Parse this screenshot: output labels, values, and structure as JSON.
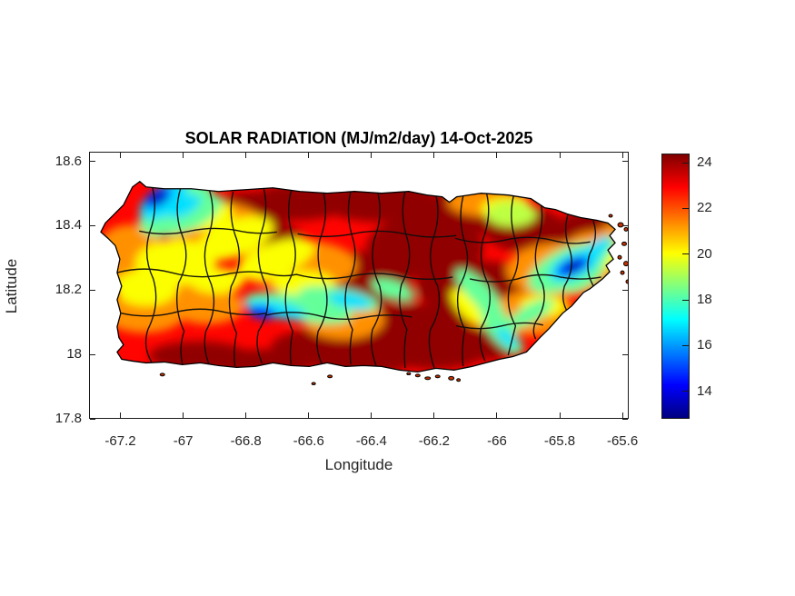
{
  "chart_data": {
    "type": "heatmap",
    "title": "SOLAR RADIATION (MJ/m2/day) 14-Oct-2025",
    "xlabel": "Longitude",
    "ylabel": "Latitude",
    "region": "Puerto Rico with municipal boundaries",
    "xlim": [
      -67.3,
      -65.58
    ],
    "ylim": [
      17.8,
      18.63
    ],
    "xticks": [
      -67.2,
      -67,
      -66.8,
      -66.6,
      -66.4,
      -66.2,
      -66,
      -65.8,
      -65.6
    ],
    "xtick_labels": [
      "-67.2",
      "-67",
      "-66.8",
      "-66.6",
      "-66.4",
      "-66.2",
      "-66",
      "-65.8",
      "-65.6"
    ],
    "yticks": [
      17.8,
      18,
      18.2,
      18.4,
      18.6
    ],
    "ytick_labels": [
      "17.8",
      "18",
      "18.2",
      "18.4",
      "18.6"
    ],
    "grid": false,
    "colormap": "jet",
    "clim": [
      12.8,
      24.4
    ],
    "colorbar_ticks": [
      14,
      16,
      18,
      20,
      22,
      24
    ],
    "colorbar_tick_labels": [
      "14",
      "16",
      "18",
      "20",
      "22",
      "24"
    ],
    "colorbar_position": "right",
    "base_value": 22.9,
    "features_format": [
      "lon",
      "lat",
      "value_MJ_m2_day",
      "rx_deg",
      "ry_deg",
      "rot_deg"
    ],
    "features": [
      [
        -66.779,
        18.447,
        24.2,
        0.13,
        0.062,
        0
      ],
      [
        -66.634,
        18.475,
        24.2,
        0.159,
        0.057,
        0
      ],
      [
        -66.373,
        18.475,
        24.2,
        0.188,
        0.062,
        0
      ],
      [
        -66.084,
        18.447,
        24.2,
        0.159,
        0.071,
        0
      ],
      [
        -65.91,
        18.39,
        24.2,
        0.13,
        0.071,
        0
      ],
      [
        -66.228,
        18.334,
        24.2,
        0.188,
        0.099,
        0
      ],
      [
        -66.431,
        18.235,
        24.2,
        0.159,
        0.085,
        0
      ],
      [
        -66.055,
        18.207,
        24.2,
        0.203,
        0.085,
        0
      ],
      [
        -66.286,
        18.08,
        24.2,
        0.203,
        0.079,
        0
      ],
      [
        -66.547,
        18.023,
        24.2,
        0.174,
        0.057,
        0
      ],
      [
        -66.952,
        17.995,
        24.2,
        0.159,
        0.045,
        0
      ],
      [
        -66.75,
        17.975,
        24.2,
        0.174,
        0.04,
        0
      ],
      [
        -66.431,
        17.975,
        24.2,
        0.159,
        0.04,
        0
      ],
      [
        -66.199,
        18.003,
        24.2,
        0.159,
        0.051,
        0
      ],
      [
        -66.055,
        18.032,
        24.2,
        0.145,
        0.051,
        0
      ],
      [
        -65.765,
        18.362,
        24.2,
        0.116,
        0.062,
        0
      ],
      [
        -65.684,
        18.41,
        24.2,
        0.101,
        0.051,
        0
      ],
      [
        -66.706,
        18.362,
        24.2,
        0.087,
        0.045,
        0
      ],
      [
        -66.895,
        18.39,
        21.3,
        0.159,
        0.085,
        0
      ],
      [
        -67.083,
        18.249,
        21.3,
        0.159,
        0.099,
        0
      ],
      [
        -67.17,
        18.334,
        21.3,
        0.101,
        0.071,
        0
      ],
      [
        -66.634,
        18.277,
        21.3,
        0.188,
        0.079,
        0
      ],
      [
        -66.489,
        18.108,
        21.3,
        0.13,
        0.062,
        0
      ],
      [
        -67.126,
        18.128,
        21.3,
        0.13,
        0.062,
        0
      ],
      [
        -66.924,
        18.15,
        21.3,
        0.116,
        0.057,
        0
      ],
      [
        -65.881,
        18.128,
        21.3,
        0.13,
        0.071,
        0
      ],
      [
        -65.678,
        18.305,
        21.3,
        0.116,
        0.079,
        0
      ],
      [
        -66.026,
        18.475,
        21.3,
        0.13,
        0.045,
        0
      ],
      [
        -65.794,
        18.263,
        21.3,
        0.174,
        0.085,
        0
      ],
      [
        -65.606,
        18.362,
        21.3,
        0.072,
        0.051,
        0
      ],
      [
        -66.958,
        18.438,
        20.0,
        0.116,
        0.051,
        0
      ],
      [
        -66.837,
        18.362,
        20.0,
        0.13,
        0.057,
        -20
      ],
      [
        -66.706,
        18.297,
        20.0,
        0.13,
        0.051,
        -20
      ],
      [
        -67.025,
        18.286,
        20.0,
        0.13,
        0.071,
        0
      ],
      [
        -67.12,
        18.207,
        20.0,
        0.101,
        0.057,
        0
      ],
      [
        -66.619,
        18.221,
        20.0,
        0.101,
        0.04,
        0
      ],
      [
        -66.541,
        18.156,
        20.0,
        0.101,
        0.04,
        0
      ],
      [
        -65.968,
        18.455,
        20.0,
        0.081,
        0.034,
        0
      ],
      [
        -66.084,
        18.144,
        20.0,
        0.081,
        0.034,
        45
      ],
      [
        -65.852,
        18.15,
        20.0,
        0.072,
        0.034,
        0
      ],
      [
        -66.895,
        18.229,
        20.0,
        0.087,
        0.04,
        0
      ],
      [
        -65.649,
        18.291,
        20.0,
        0.058,
        0.025,
        -35
      ],
      [
        -67.025,
        18.455,
        18.3,
        0.13,
        0.071,
        -30
      ],
      [
        -66.967,
        18.438,
        18.3,
        0.101,
        0.042,
        -30
      ],
      [
        -66.634,
        18.144,
        18.3,
        0.174,
        0.04,
        10
      ],
      [
        -66.504,
        18.173,
        18.3,
        0.13,
        0.034,
        10
      ],
      [
        -66.33,
        18.201,
        18.3,
        0.072,
        0.028,
        20
      ],
      [
        -66.055,
        18.192,
        18.3,
        0.101,
        0.034,
        45
      ],
      [
        -66.002,
        18.116,
        18.3,
        0.087,
        0.028,
        45
      ],
      [
        -65.982,
        18.06,
        18.3,
        0.087,
        0.028,
        45
      ],
      [
        -65.89,
        18.127,
        18.3,
        0.081,
        0.028,
        -30
      ],
      [
        -65.771,
        18.269,
        18.3,
        0.139,
        0.062,
        -25
      ],
      [
        -65.684,
        18.314,
        18.3,
        0.081,
        0.034,
        -40
      ],
      [
        -65.722,
        18.235,
        18.3,
        0.072,
        0.028,
        -30
      ],
      [
        -65.953,
        18.438,
        19.3,
        0.081,
        0.04,
        0
      ],
      [
        -67.063,
        18.478,
        16.8,
        0.087,
        0.045,
        -32
      ],
      [
        -66.996,
        18.461,
        16.8,
        0.058,
        0.025,
        -32
      ],
      [
        -66.706,
        18.139,
        16.8,
        0.098,
        0.025,
        10
      ],
      [
        -66.469,
        18.167,
        16.8,
        0.07,
        0.023,
        10
      ],
      [
        -65.751,
        18.277,
        16.8,
        0.087,
        0.04,
        -25
      ],
      [
        -65.684,
        18.325,
        16.8,
        0.058,
        0.023,
        -40
      ],
      [
        -65.968,
        18.051,
        16.8,
        0.041,
        0.017,
        45
      ],
      [
        -67.083,
        18.489,
        14.8,
        0.049,
        0.025,
        -32
      ],
      [
        -66.75,
        18.13,
        14.8,
        0.043,
        0.02,
        10
      ],
      [
        -65.756,
        18.274,
        14.8,
        0.055,
        0.025,
        -25
      ],
      [
        -67.077,
        18.486,
        13.3,
        0.026,
        0.014,
        -32
      ],
      [
        -65.753,
        18.274,
        13.3,
        0.029,
        0.014,
        -25
      ]
    ]
  }
}
